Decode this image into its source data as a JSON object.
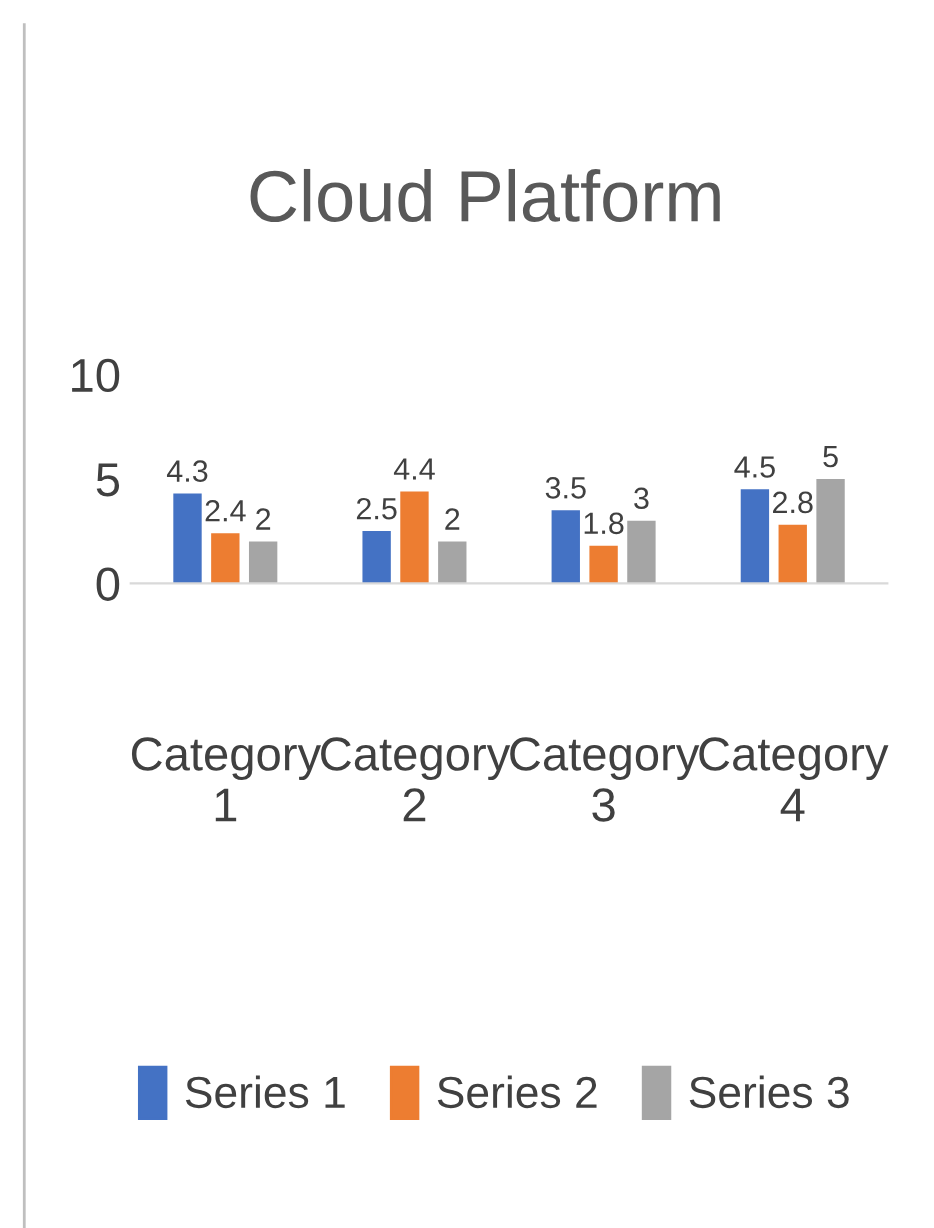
{
  "chart_data": {
    "type": "bar",
    "title": "Cloud Platform",
    "categories": [
      "Category 1",
      "Category 2",
      "Category 3",
      "Category 4"
    ],
    "series": [
      {
        "name": "Series 1",
        "color": "#4472c4",
        "values": [
          4.3,
          2.5,
          3.5,
          4.5
        ]
      },
      {
        "name": "Series 2",
        "color": "#ed7d31",
        "values": [
          2.4,
          4.4,
          1.8,
          2.8
        ]
      },
      {
        "name": "Series 3",
        "color": "#a5a5a5",
        "values": [
          2,
          2,
          3,
          5
        ]
      }
    ],
    "ylim": [
      0,
      10
    ],
    "yticks": [
      0,
      5,
      10
    ],
    "grid": false,
    "legend": "bottom",
    "data_labels": true
  }
}
